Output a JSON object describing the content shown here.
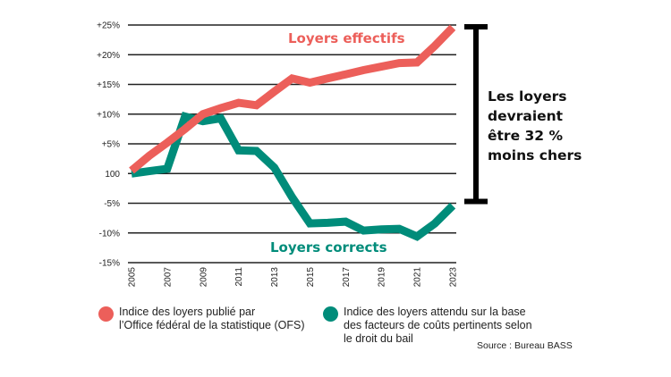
{
  "chart_data": {
    "type": "line",
    "title": "",
    "xlabel": "",
    "ylabel": "",
    "x": [
      2005,
      2006,
      2007,
      2008,
      2009,
      2010,
      2011,
      2012,
      2013,
      2014,
      2015,
      2016,
      2017,
      2018,
      2019,
      2020,
      2021,
      2022,
      2023
    ],
    "x_tick_labels": [
      "2005",
      "2007",
      "2009",
      "2011",
      "2013",
      "2015",
      "2017",
      "2019",
      "2021",
      "2023"
    ],
    "y_ticks": [
      25,
      20,
      15,
      10,
      5,
      0,
      -5,
      -10,
      -15
    ],
    "y_tick_labels": [
      "+25%",
      "+20%",
      "+15%",
      "+10%",
      "+5%",
      "100",
      "-5%",
      "-10%",
      "-15%"
    ],
    "ylim": [
      -15,
      25
    ],
    "xlim": [
      2005,
      2023
    ],
    "grid": "horizontal",
    "series": [
      {
        "name": "Loyers effectifs",
        "color": "#EC5F5A",
        "values": [
          0.5,
          3,
          5.2,
          7.5,
          10,
          11,
          11.9,
          11.5,
          13.8,
          16,
          15.3,
          16,
          16.7,
          17.4,
          18,
          18.6,
          18.7,
          21.5,
          24.6
        ]
      },
      {
        "name": "Loyers corrects",
        "color": "#008C7A",
        "values": [
          0,
          0.4,
          0.8,
          9.6,
          8.8,
          9.3,
          3.9,
          3.8,
          1,
          -4,
          -8.4,
          -8.3,
          -8.1,
          -9.6,
          -9.4,
          -9.3,
          -10.6,
          -8.4,
          -5.4
        ]
      }
    ],
    "annotations": [
      {
        "text": "Loyers effectifs",
        "color": "#EC5F5A",
        "near": "top, above red line"
      },
      {
        "text": "Loyers corrects",
        "color": "#008C7A",
        "near": "bottom, below green line"
      },
      {
        "type": "range-bracket",
        "from": -5,
        "to": 25,
        "label": "Les loyers devraient être 32 % moins chers"
      }
    ]
  },
  "annotation": {
    "lines": [
      "Les loyers",
      "devraient",
      "être 32 %",
      "moins chers"
    ]
  },
  "legend": [
    {
      "color": "#EC5F5A",
      "lines": [
        "Indice des loyers publié par",
        "l’Office fédéral de la statistique (OFS)"
      ]
    },
    {
      "color": "#008C7A",
      "lines": [
        "Indice des loyers attendu sur la base",
        "des facteurs de coûts pertinents selon",
        "le droit du bail"
      ]
    }
  ],
  "source": "Source : Bureau BASS"
}
